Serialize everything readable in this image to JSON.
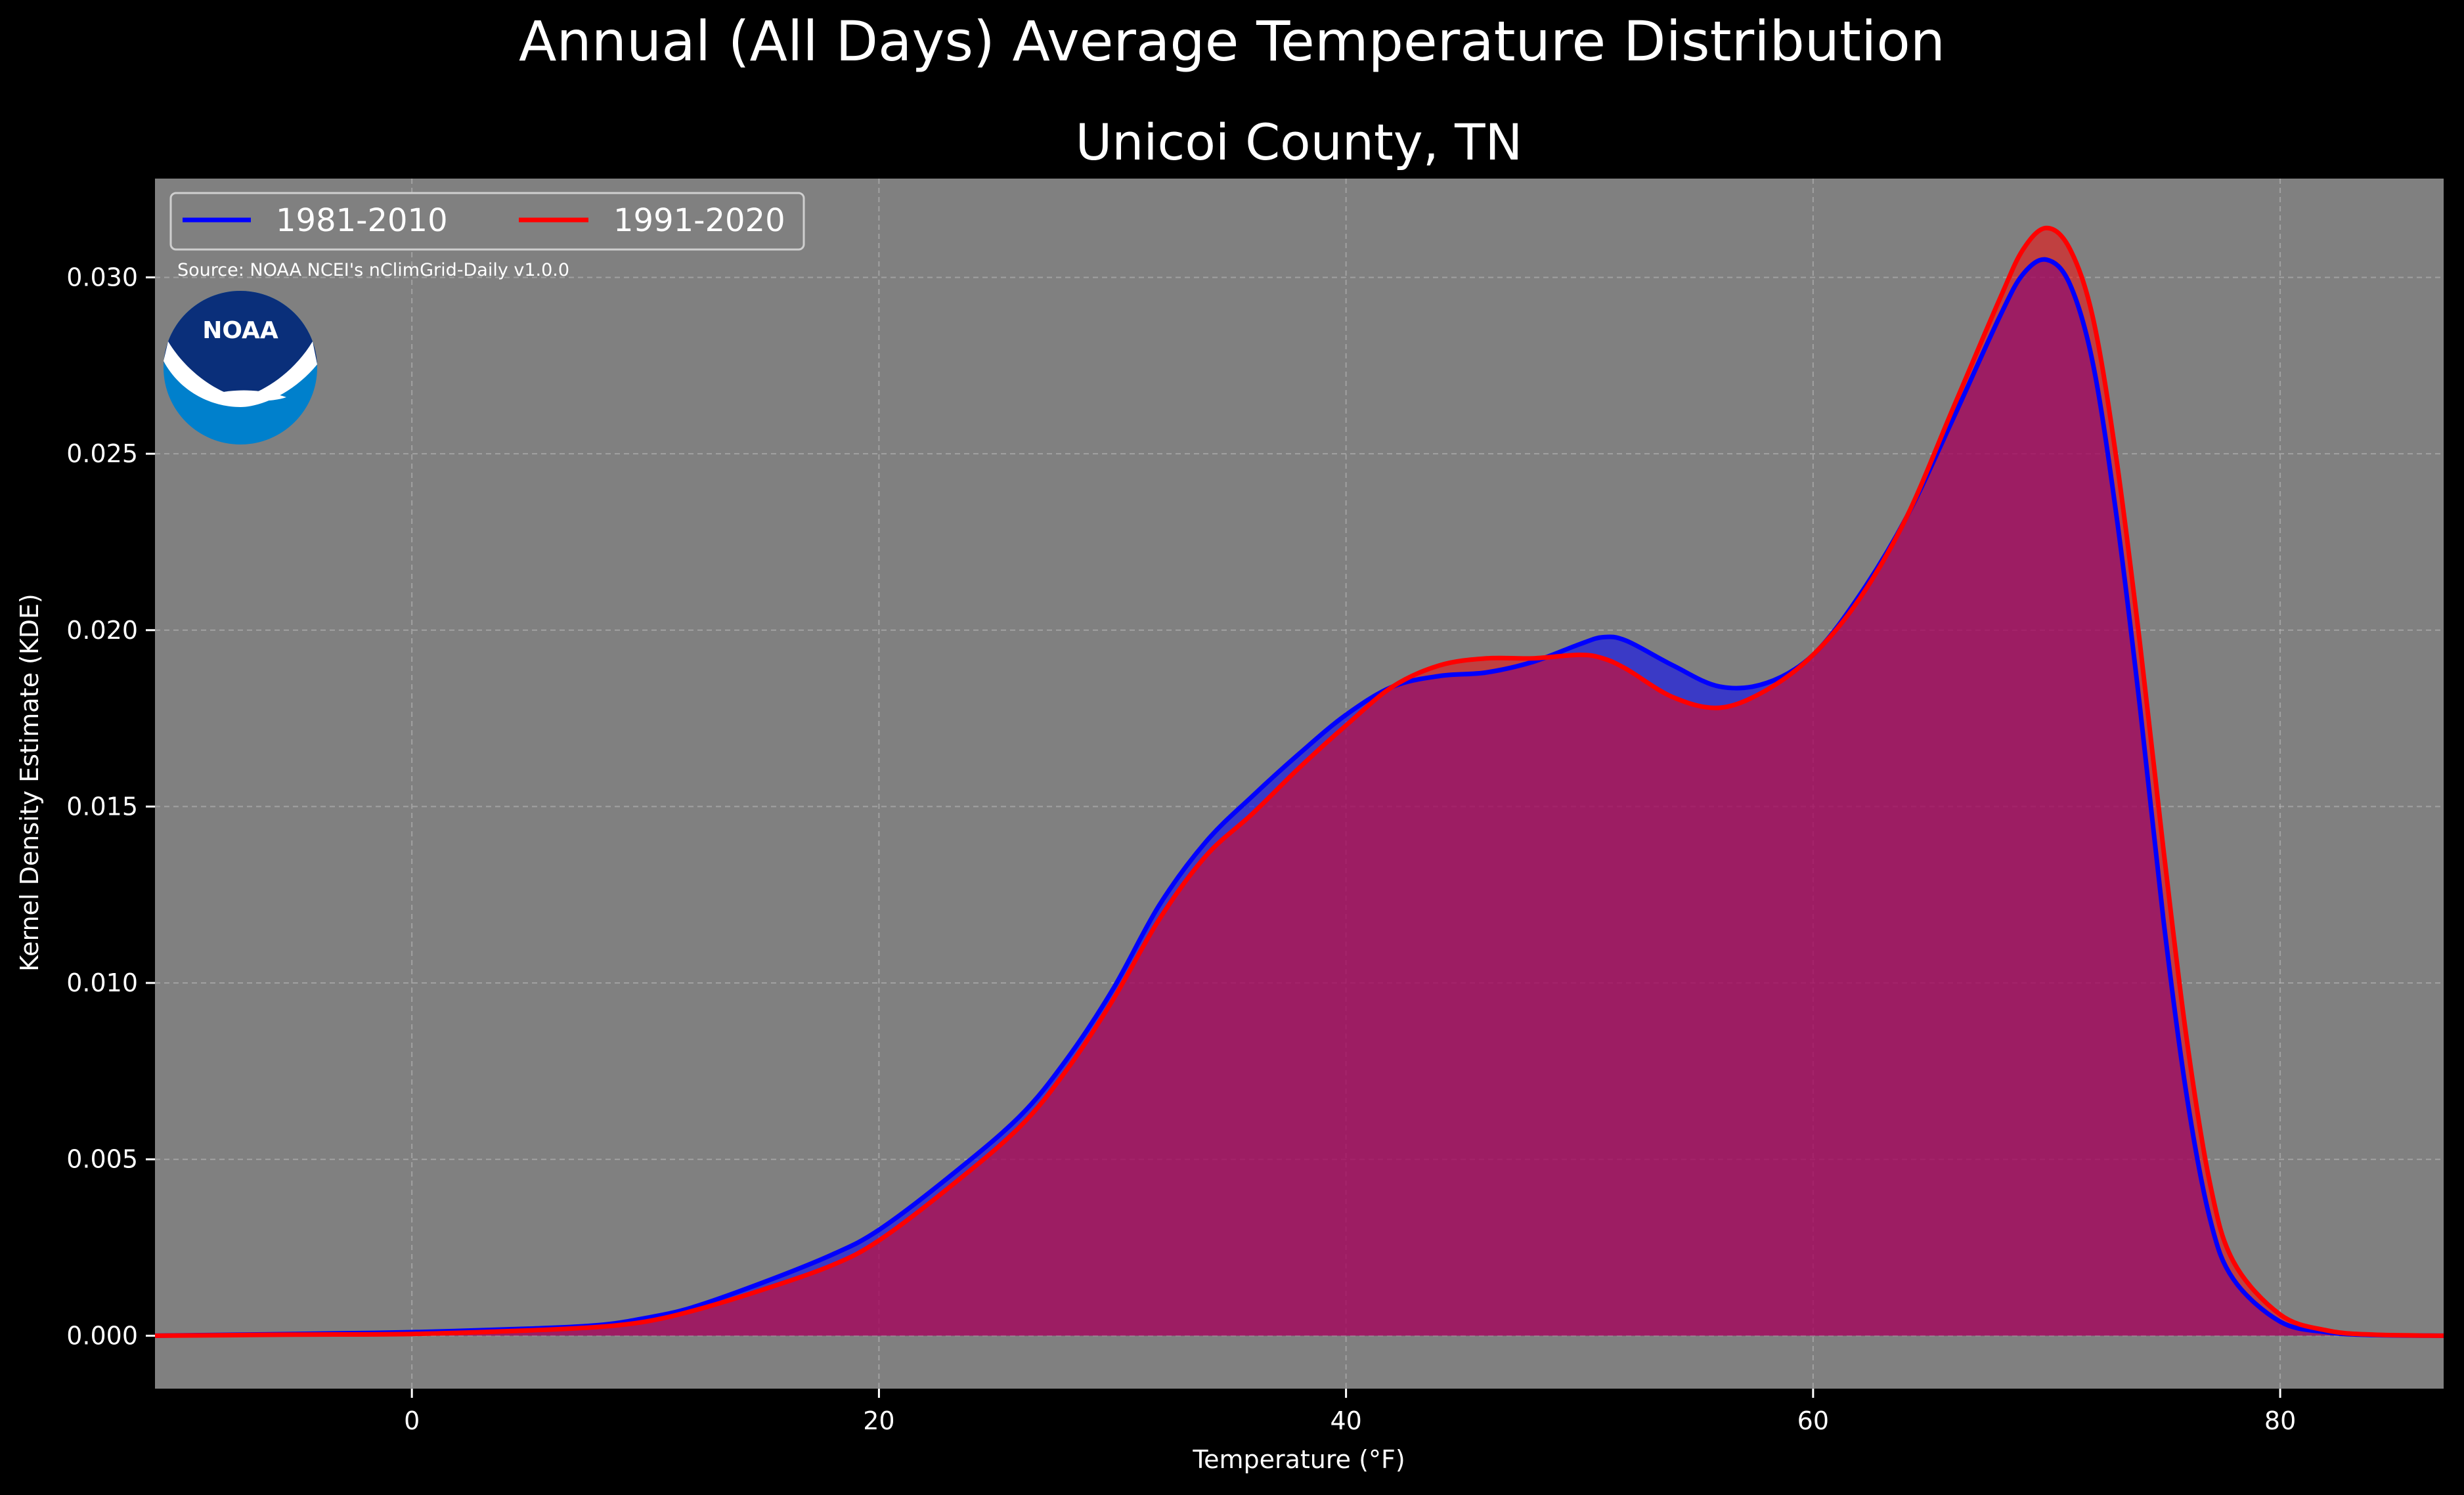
{
  "chart_data": {
    "type": "area",
    "title": "Annual (All Days) Average Temperature Distribution",
    "subtitle": "Unicoi County, TN",
    "xlabel": "Temperature ($^\\circ$F)",
    "xlabel_display": "Temperature (°F)",
    "ylabel": "Kernel Density Estimate (KDE)",
    "xlim": [
      -11,
      87
    ],
    "ylim": [
      -0.0015,
      0.0328
    ],
    "xticks": [
      0,
      20,
      40,
      60,
      80
    ],
    "xtick_labels": [
      "0",
      "20",
      "40",
      "60",
      "80"
    ],
    "yticks": [
      0.0,
      0.005,
      0.01,
      0.015,
      0.02,
      0.025,
      0.03
    ],
    "ytick_labels": [
      "0.000",
      "0.005",
      "0.010",
      "0.015",
      "0.020",
      "0.025",
      "0.030"
    ],
    "grid": true,
    "legend_position": "top-left",
    "source": "Source: NOAA NCEI's nClimGrid-Daily v1.0.0",
    "colors": {
      "background": "#000000",
      "plot_bg": "#808080"
    },
    "series": [
      {
        "name": "1981-2010",
        "color": "#0000ff",
        "fill": "#0000ff",
        "x": [
          -11,
          -5,
          0,
          5,
          8,
          10,
          12,
          15,
          18,
          20,
          23,
          26,
          28,
          30,
          32,
          34,
          36,
          38,
          40,
          42,
          44,
          46,
          48,
          50,
          51,
          52,
          54,
          56,
          58,
          60,
          62,
          64,
          66,
          68,
          69,
          70,
          71,
          72,
          73,
          74,
          75,
          76,
          77,
          78,
          80,
          82,
          84,
          87
        ],
        "y": [
          0.0,
          5e-05,
          0.0001,
          0.0002,
          0.0003,
          0.0005,
          0.0008,
          0.0015,
          0.0023,
          0.003,
          0.0045,
          0.0062,
          0.0078,
          0.0098,
          0.0122,
          0.014,
          0.0153,
          0.0165,
          0.0176,
          0.0184,
          0.0187,
          0.0188,
          0.0191,
          0.0196,
          0.0198,
          0.0197,
          0.019,
          0.0184,
          0.0185,
          0.0193,
          0.021,
          0.0232,
          0.026,
          0.0289,
          0.0301,
          0.0305,
          0.0298,
          0.0275,
          0.0232,
          0.0178,
          0.0118,
          0.0068,
          0.0033,
          0.0016,
          0.0004,
          0.0001,
          2e-05,
          0.0
        ]
      },
      {
        "name": "1991-2020",
        "color": "#ff0000",
        "fill": "#ff0000",
        "x": [
          -11,
          -5,
          0,
          5,
          8,
          10,
          12,
          15,
          18,
          20,
          23,
          26,
          28,
          30,
          32,
          34,
          36,
          38,
          40,
          42,
          44,
          46,
          48,
          50,
          51,
          52,
          54,
          56,
          58,
          60,
          62,
          64,
          66,
          68,
          69,
          70,
          71,
          72,
          73,
          74,
          75,
          76,
          77,
          78,
          80,
          82,
          84,
          87
        ],
        "y": [
          0.0,
          3e-05,
          5e-05,
          0.00015,
          0.00025,
          0.0004,
          0.0007,
          0.0013,
          0.002,
          0.0027,
          0.0042,
          0.0059,
          0.0075,
          0.0095,
          0.0118,
          0.0136,
          0.0148,
          0.0161,
          0.0173,
          0.0184,
          0.019,
          0.0192,
          0.0192,
          0.0193,
          0.0192,
          0.0189,
          0.0181,
          0.0178,
          0.0183,
          0.0193,
          0.0209,
          0.0232,
          0.0263,
          0.0294,
          0.0308,
          0.0314,
          0.0308,
          0.0288,
          0.0248,
          0.0196,
          0.0138,
          0.0084,
          0.0043,
          0.0021,
          0.0006,
          0.00015,
          3e-05,
          0.0
        ]
      }
    ]
  },
  "logo": {
    "name": "noaa-logo",
    "text": "NOAA",
    "colors": [
      "#0a2f7a",
      "#0080cc",
      "#ffffff"
    ]
  }
}
